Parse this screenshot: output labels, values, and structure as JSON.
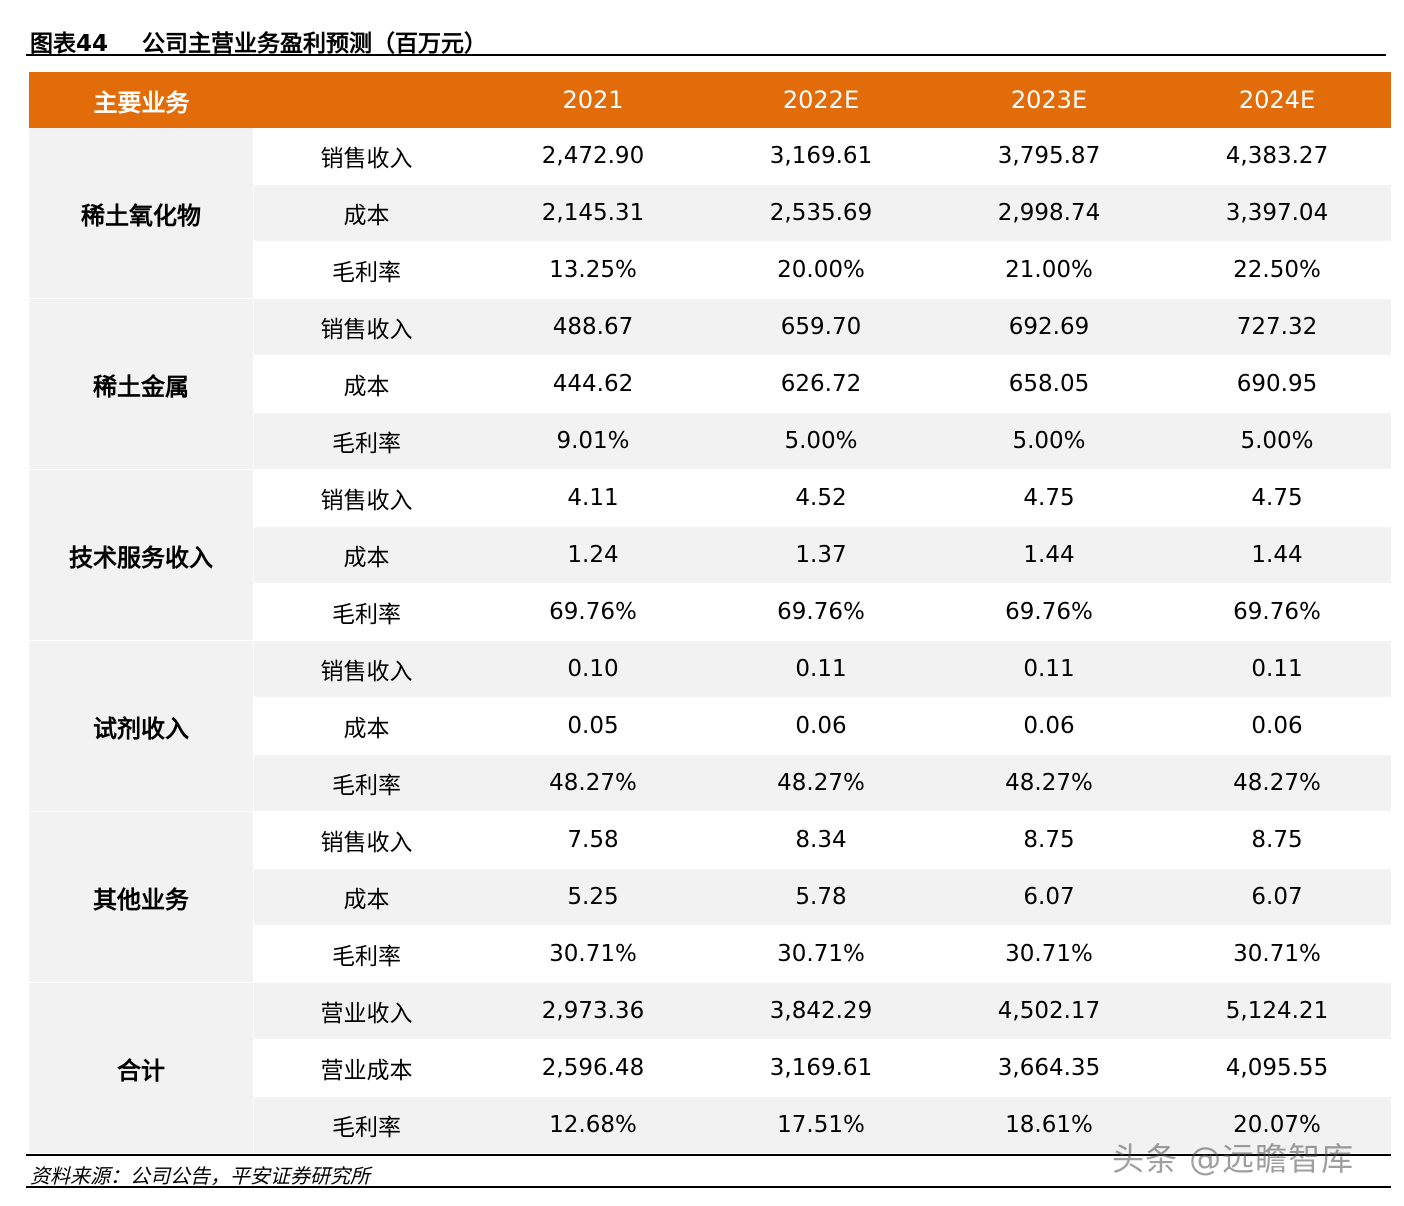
{
  "figure": {
    "number": "图表44",
    "title": "公司主营业务盈利预测（百万元）"
  },
  "header": {
    "business": "主要业务",
    "item": "",
    "years": [
      "2021",
      "2022E",
      "2023E",
      "2024E"
    ]
  },
  "groups": [
    {
      "name": "稀土氧化物",
      "rows": [
        {
          "item": "销售收入",
          "values": [
            "2,472.90",
            "3,169.61",
            "3,795.87",
            "4,383.27"
          ]
        },
        {
          "item": "成本",
          "values": [
            "2,145.31",
            "2,535.69",
            "2,998.74",
            "3,397.04"
          ]
        },
        {
          "item": "毛利率",
          "values": [
            "13.25%",
            "20.00%",
            "21.00%",
            "22.50%"
          ]
        }
      ]
    },
    {
      "name": "稀土金属",
      "rows": [
        {
          "item": "销售收入",
          "values": [
            "488.67",
            "659.70",
            "692.69",
            "727.32"
          ]
        },
        {
          "item": "成本",
          "values": [
            "444.62",
            "626.72",
            "658.05",
            "690.95"
          ]
        },
        {
          "item": "毛利率",
          "values": [
            "9.01%",
            "5.00%",
            "5.00%",
            "5.00%"
          ]
        }
      ]
    },
    {
      "name": "技术服务收入",
      "rows": [
        {
          "item": "销售收入",
          "values": [
            "4.11",
            "4.52",
            "4.75",
            "4.75"
          ]
        },
        {
          "item": "成本",
          "values": [
            "1.24",
            "1.37",
            "1.44",
            "1.44"
          ]
        },
        {
          "item": "毛利率",
          "values": [
            "69.76%",
            "69.76%",
            "69.76%",
            "69.76%"
          ]
        }
      ]
    },
    {
      "name": "试剂收入",
      "rows": [
        {
          "item": "销售收入",
          "values": [
            "0.10",
            "0.11",
            "0.11",
            "0.11"
          ]
        },
        {
          "item": "成本",
          "values": [
            "0.05",
            "0.06",
            "0.06",
            "0.06"
          ]
        },
        {
          "item": "毛利率",
          "values": [
            "48.27%",
            "48.27%",
            "48.27%",
            "48.27%"
          ]
        }
      ]
    },
    {
      "name": "其他业务",
      "rows": [
        {
          "item": "销售收入",
          "values": [
            "7.58",
            "8.34",
            "8.75",
            "8.75"
          ]
        },
        {
          "item": "成本",
          "values": [
            "5.25",
            "5.78",
            "6.07",
            "6.07"
          ]
        },
        {
          "item": "毛利率",
          "values": [
            "30.71%",
            "30.71%",
            "30.71%",
            "30.71%"
          ]
        }
      ]
    },
    {
      "name": "合计",
      "rows": [
        {
          "item": "营业收入",
          "values": [
            "2,973.36",
            "3,842.29",
            "4,502.17",
            "5,124.21"
          ]
        },
        {
          "item": "营业成本",
          "values": [
            "2,596.48",
            "3,169.61",
            "3,664.35",
            "4,095.55"
          ]
        },
        {
          "item": "毛利率",
          "values": [
            "12.68%",
            "17.51%",
            "18.61%",
            "20.07%"
          ]
        }
      ]
    }
  ],
  "source": "资料来源：公司公告，平安证券研究所",
  "watermark": "头条 @远瞻智库",
  "colors": {
    "header_bg": "#E36C0A",
    "shade": "#F2F2F2"
  }
}
